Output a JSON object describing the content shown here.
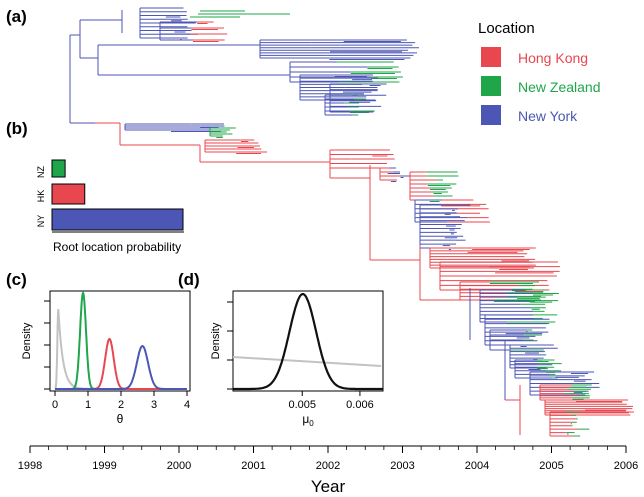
{
  "panels": {
    "a": "(a)",
    "b": "(b)",
    "c": "(c)",
    "d": "(d)"
  },
  "colors": {
    "hong_kong": "#e8474f",
    "new_zealand": "#1fa64a",
    "new_york": "#4c56b4",
    "grey": "#c2c2c2"
  },
  "legend": {
    "title": "Location",
    "items": [
      {
        "label": "Hong Kong",
        "color": "#e8474f"
      },
      {
        "label": "New Zealand",
        "color": "#1fa64a"
      },
      {
        "label": "New York",
        "color": "#4c56b4"
      }
    ]
  },
  "chart_data": [
    {
      "type": "bar",
      "panel": "b",
      "orientation": "horizontal",
      "categories": [
        "NZ",
        "HK",
        "NY"
      ],
      "values": [
        0.1,
        0.25,
        1.0
      ],
      "colors": [
        "#1fa64a",
        "#e8474f",
        "#4c56b4"
      ],
      "xlabel": "Root location probability",
      "ylabel": ""
    },
    {
      "type": "line",
      "panel": "c",
      "xlabel": "θ",
      "ylabel": "Density",
      "xlim": [
        0,
        4
      ],
      "x_ticks": [
        "0",
        "1",
        "2",
        "3",
        "4"
      ],
      "series": [
        {
          "color": "#c2c2c2",
          "peak_x": 0.1
        },
        {
          "color": "#1fa64a",
          "peak_x": 0.85
        },
        {
          "color": "#e8474f",
          "peak_x": 1.65
        },
        {
          "color": "#4c56b4",
          "peak_x": 2.65
        }
      ]
    },
    {
      "type": "line",
      "panel": "d",
      "xlabel": "μ",
      "xlabel_sub": "0",
      "ylabel": "Density",
      "xlim": [
        0.0038,
        0.0064
      ],
      "x_ticks": [
        "0.005",
        "0.006"
      ],
      "x_tick_values": [
        0.005,
        0.006
      ],
      "series": [
        {
          "color": "#111111",
          "peak_x": 0.005
        },
        {
          "color": "#c2c2c2",
          "peak_x": null
        }
      ]
    }
  ],
  "time_axis": {
    "title": "Year",
    "range": [
      1998,
      2006
    ],
    "ticks": [
      "1998",
      "1999",
      "2000",
      "2001",
      "2002",
      "2003",
      "2004",
      "2005",
      "2006"
    ]
  }
}
